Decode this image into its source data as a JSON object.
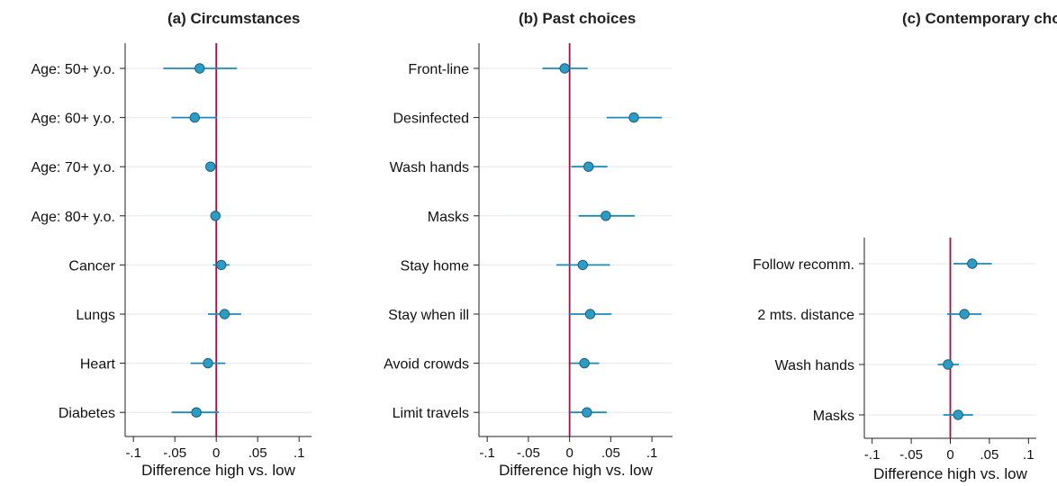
{
  "chart_data": [
    {
      "type": "scatter",
      "title": "(a) Circumstances",
      "xlabel": "Difference high vs. low",
      "xlim": [
        -0.11,
        0.115
      ],
      "xticks": [
        -0.1,
        -0.05,
        0,
        0.05,
        0.1
      ],
      "xtick_labels": [
        "-.1",
        "-.05",
        "0",
        ".05",
        ".1"
      ],
      "reference_line": 0,
      "grid": "horizontal",
      "categories": [
        "Age: 50+ y.o.",
        "Age: 60+ y.o.",
        "Age: 70+ y.o.",
        "Age: 80+ y.o.",
        "Cancer",
        "Lungs",
        "Heart",
        "Diabetes"
      ],
      "points": [
        {
          "estimate": -0.02,
          "ci_low": -0.064,
          "ci_high": 0.025
        },
        {
          "estimate": -0.026,
          "ci_low": -0.054,
          "ci_high": 0.001
        },
        {
          "estimate": -0.007,
          "ci_low": -0.012,
          "ci_high": -0.002
        },
        {
          "estimate": -0.001,
          "ci_low": -0.004,
          "ci_high": 0.002
        },
        {
          "estimate": 0.006,
          "ci_low": -0.004,
          "ci_high": 0.016
        },
        {
          "estimate": 0.01,
          "ci_low": -0.01,
          "ci_high": 0.03
        },
        {
          "estimate": -0.01,
          "ci_low": -0.031,
          "ci_high": 0.011
        },
        {
          "estimate": -0.024,
          "ci_low": -0.054,
          "ci_high": 0.003
        }
      ]
    },
    {
      "type": "scatter",
      "title": "(b) Past choices",
      "xlabel": "Difference high vs. low",
      "xlim": [
        -0.11,
        0.125
      ],
      "xticks": [
        -0.1,
        -0.05,
        0,
        0.05,
        0.1
      ],
      "xtick_labels": [
        "-.1",
        "-.05",
        "0",
        ".05",
        ".1"
      ],
      "reference_line": 0,
      "grid": "horizontal",
      "categories": [
        "Front-line",
        "Desinfected",
        "Wash hands",
        "Masks",
        "Stay home",
        "Stay when ill",
        "Avoid crowds",
        "Limit travels"
      ],
      "points": [
        {
          "estimate": -0.006,
          "ci_low": -0.033,
          "ci_high": 0.022
        },
        {
          "estimate": 0.078,
          "ci_low": 0.045,
          "ci_high": 0.112
        },
        {
          "estimate": 0.023,
          "ci_low": 0.002,
          "ci_high": 0.046
        },
        {
          "estimate": 0.044,
          "ci_low": 0.011,
          "ci_high": 0.079
        },
        {
          "estimate": 0.016,
          "ci_low": -0.016,
          "ci_high": 0.049
        },
        {
          "estimate": 0.025,
          "ci_low": -0.001,
          "ci_high": 0.051
        },
        {
          "estimate": 0.018,
          "ci_low": 0.001,
          "ci_high": 0.036
        },
        {
          "estimate": 0.021,
          "ci_low": 0.0,
          "ci_high": 0.045
        }
      ]
    },
    {
      "type": "scatter",
      "title": "(c) Contemporary choices",
      "xlabel": "Difference high vs. low",
      "xlim": [
        -0.11,
        0.11
      ],
      "xticks": [
        -0.1,
        -0.05,
        0,
        0.05,
        0.1
      ],
      "xtick_labels": [
        "-.1",
        "-.05",
        "0",
        ".05",
        ".1"
      ],
      "reference_line": 0,
      "grid": "horizontal",
      "categories": [
        "Follow recomm.",
        "2 mts. distance",
        "Wash hands",
        "Masks"
      ],
      "points": [
        {
          "estimate": 0.028,
          "ci_low": 0.004,
          "ci_high": 0.053
        },
        {
          "estimate": 0.018,
          "ci_low": -0.004,
          "ci_high": 0.04
        },
        {
          "estimate": -0.003,
          "ci_low": -0.016,
          "ci_high": 0.011
        },
        {
          "estimate": 0.01,
          "ci_low": -0.009,
          "ci_high": 0.029
        }
      ]
    }
  ],
  "colors": {
    "marker_fill": "#2b9cc4",
    "marker_edge": "#1b5f82",
    "ci_line": "#1e8ab4",
    "reference_line": "#a3123f",
    "grid": "#e8edf0",
    "axis": "#222222"
  }
}
